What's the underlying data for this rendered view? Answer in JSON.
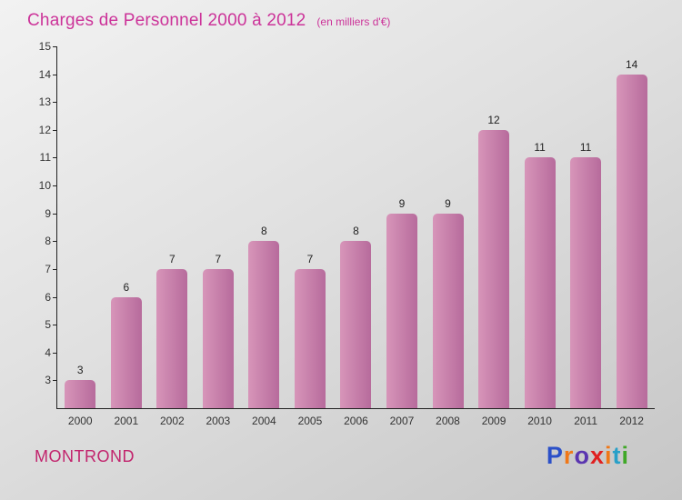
{
  "chart_data": {
    "type": "bar",
    "title": "Charges de Personnel 2000 à 2012",
    "subtitle": "(en milliers d'€)",
    "categories": [
      "2000",
      "2001",
      "2002",
      "2003",
      "2004",
      "2005",
      "2006",
      "2007",
      "2008",
      "2009",
      "2010",
      "2011",
      "2012"
    ],
    "values": [
      3,
      6,
      7,
      7,
      8,
      7,
      8,
      9,
      9,
      12,
      11,
      11,
      14
    ],
    "xlabel": "",
    "ylabel": "",
    "ylim": [
      2,
      15
    ],
    "yticks": [
      3,
      4,
      5,
      6,
      7,
      8,
      9,
      10,
      11,
      12,
      13,
      14,
      15
    ],
    "grid": false,
    "legend": false,
    "bar_color_left": "#d795b9",
    "bar_color_right": "#b76b9c"
  },
  "footer": {
    "entity": "MONTROND",
    "logo_letters": [
      {
        "ch": "P",
        "color": "#2b50c8"
      },
      {
        "ch": "r",
        "color": "#f07818"
      },
      {
        "ch": "o",
        "color": "#5a35b0"
      },
      {
        "ch": "x",
        "color": "#e02020"
      },
      {
        "ch": "i",
        "color": "#f07818"
      },
      {
        "ch": "t",
        "color": "#28a0c8"
      },
      {
        "ch": "i",
        "color": "#40a828"
      }
    ]
  },
  "colors": {
    "title": "#cc3399",
    "entity": "#c2246d",
    "axis": "#222222",
    "value_label": "#222222"
  }
}
